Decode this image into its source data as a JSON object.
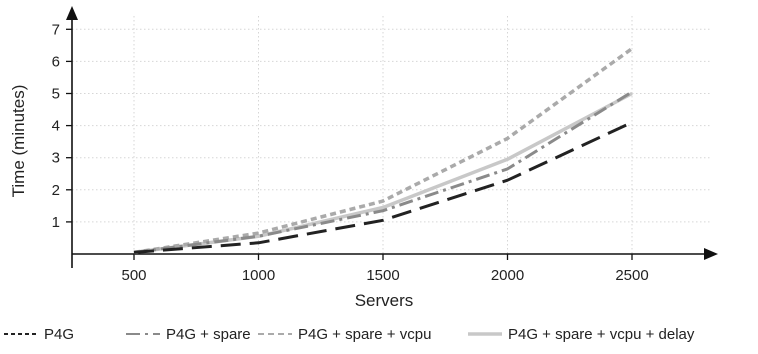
{
  "chart_data": {
    "type": "line",
    "xlabel": "Servers",
    "ylabel": "Time (minutes)",
    "x": [
      500,
      1000,
      1500,
      2000,
      2500
    ],
    "xlim": [
      250,
      2750
    ],
    "ylim": [
      0,
      7.6
    ],
    "xticks": [
      500,
      1000,
      1500,
      2000,
      2500
    ],
    "yticks": [
      1,
      2,
      3,
      4,
      5,
      6,
      7
    ],
    "grid": true,
    "legend_position": "bottom",
    "series": [
      {
        "name": "P4G",
        "values": [
          0.05,
          0.35,
          1.05,
          2.3,
          4.1
        ],
        "color": "#222222",
        "dash": "long-dash"
      },
      {
        "name": "P4G + spare",
        "values": [
          0.05,
          0.55,
          1.35,
          2.65,
          5.05
        ],
        "color": "#8a8a8a",
        "dash": "dash-dot"
      },
      {
        "name": "P4G + spare + vcpu",
        "values": [
          0.05,
          0.65,
          1.65,
          3.6,
          6.4
        ],
        "color": "#aaaaaa",
        "dash": "short-dash"
      },
      {
        "name": "P4G + spare + vcpu + delay",
        "values": [
          0.05,
          0.55,
          1.45,
          2.95,
          5.0
        ],
        "color": "#c8c8c8",
        "dash": "solid"
      }
    ]
  }
}
